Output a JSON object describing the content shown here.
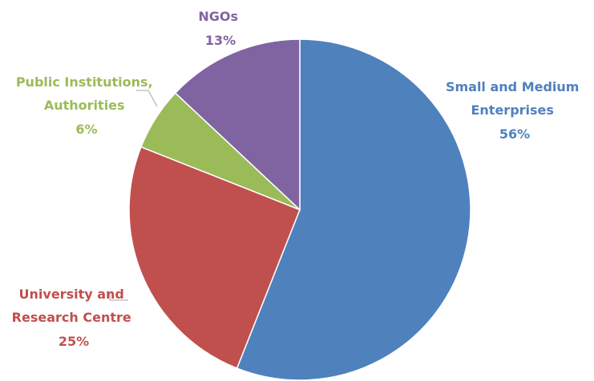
{
  "chart_data": {
    "type": "pie",
    "title": "",
    "start_angle_deg": 0,
    "direction": "clockwise",
    "legend": "none",
    "slices": [
      {
        "label_lines": [
          "Small and Medium",
          "Enterprises"
        ],
        "percent_label": "56%",
        "value": 56,
        "color": "#4F81BD"
      },
      {
        "label_lines": [
          "University and",
          "Research Centre"
        ],
        "percent_label": "25%",
        "value": 25,
        "color": "#C0504D"
      },
      {
        "label_lines": [
          "Public Institutions,",
          "Authorities"
        ],
        "percent_label": "6%",
        "value": 6,
        "color": "#9BBB59"
      },
      {
        "label_lines": [
          "NGOs"
        ],
        "percent_label": "13%",
        "value": 13,
        "color": "#8064A2"
      }
    ]
  }
}
